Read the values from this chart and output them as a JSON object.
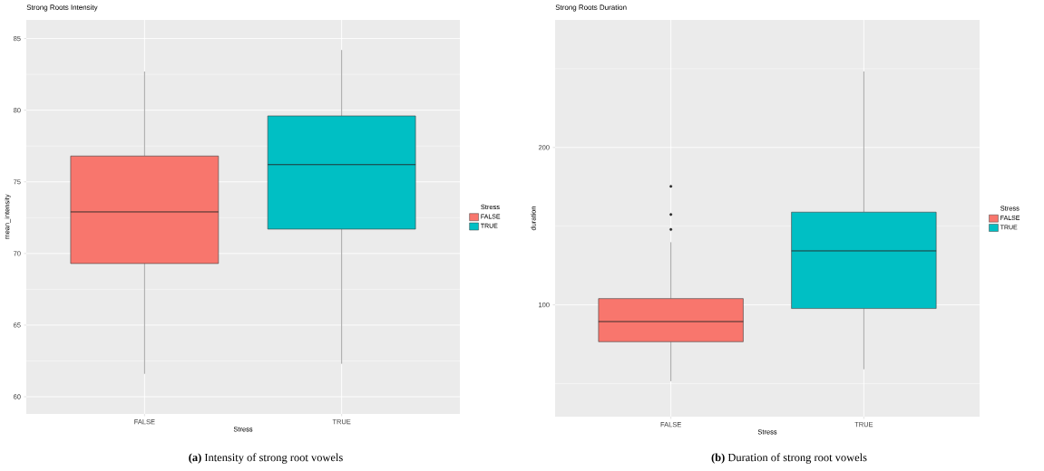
{
  "chart_data": [
    {
      "type": "box",
      "title": "Strong Roots Intensity",
      "xlabel": "Stress",
      "ylabel": "mean_intensity",
      "legend_title": "Stress",
      "legend": "right",
      "grid": true,
      "categories": [
        "FALSE",
        "TRUE"
      ],
      "series": [
        {
          "name": "FALSE",
          "color": "#f8766d",
          "boxes": [
            {
              "low": 61.6,
              "q1": 69.3,
              "median": 72.9,
              "q3": 76.8,
              "high": 82.7
            },
            null
          ]
        },
        {
          "name": "TRUE",
          "color": "#00bfc4",
          "boxes": [
            null,
            {
              "low": 62.3,
              "q1": 71.7,
              "median": 76.2,
              "q3": 79.6,
              "high": 84.2
            }
          ]
        }
      ],
      "ylim": [
        58.8,
        86.3
      ],
      "yticks": [
        60,
        65,
        70,
        75,
        80,
        85
      ],
      "annotations": [
        "**(a)** Intensity of strong root vowels"
      ]
    },
    {
      "type": "box",
      "title": "Strong Roots Duration",
      "xlabel": "Stress",
      "ylabel": "duration",
      "legend_title": "Stress",
      "legend": "right",
      "grid": true,
      "categories": [
        "FALSE",
        "TRUE"
      ],
      "series": [
        {
          "name": "FALSE",
          "color": "#f8766d",
          "boxes": [
            {
              "low": 51.5,
              "q1": 76.6,
              "median": 89.4,
              "q3": 104,
              "high": 139.8,
              "outliers": [
                147.9,
                157.4,
                175.3
              ]
            },
            null
          ]
        },
        {
          "name": "TRUE",
          "color": "#00bfc4",
          "boxes": [
            null,
            {
              "low": 59.1,
              "q1": 97.7,
              "median": 134.3,
              "q3": 158.9,
              "high": 248.3
            }
          ]
        }
      ],
      "ylim": [
        29,
        281
      ],
      "yticks": [
        100,
        200
      ],
      "annotations": [
        "**(b)** Duration of strong root vowels"
      ]
    }
  ]
}
